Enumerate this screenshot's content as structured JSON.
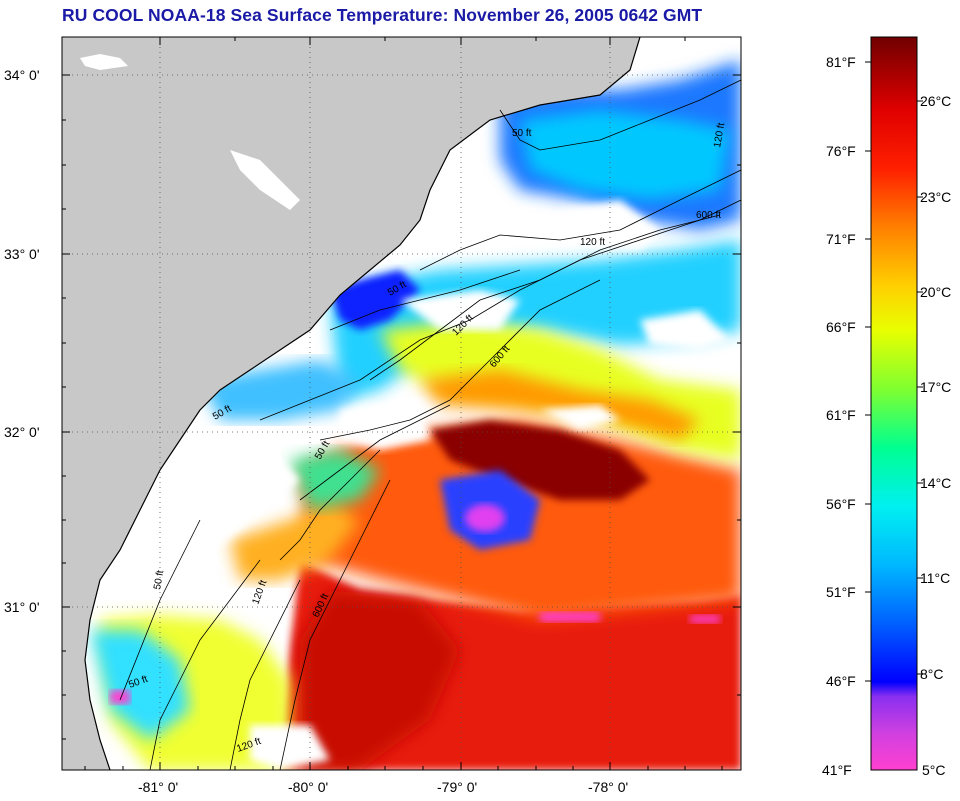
{
  "title": "RU COOL  NOAA-18  Sea Surface Temperature:  November 26, 2005 0642 GMT",
  "map": {
    "lat_labels": [
      "34° 0'",
      "33° 0'",
      "32° 0'",
      "31° 0'"
    ],
    "lon_labels": [
      "-81° 0'",
      "-80° 0'",
      "-79° 0'",
      "-78° 0'"
    ],
    "contour_labels": [
      "50 ft",
      "120 ft",
      "600 ft",
      "120 ft",
      "50 ft",
      "120 ft",
      "600 ft",
      "50 ft",
      "50 ft",
      "50 ft",
      "50 ft",
      "120 ft",
      "600 ft",
      "120 ft"
    ],
    "colors": {
      "land": "#c8c8c8",
      "cloud": "#ffffff",
      "frame": "#000000"
    }
  },
  "colorbar": {
    "fahrenheit_labels": [
      "81°F",
      "76°F",
      "71°F",
      "66°F",
      "61°F",
      "56°F",
      "51°F",
      "46°F",
      "41°F"
    ],
    "celsius_labels": [
      "26°C",
      "23°C",
      "20°C",
      "17°C",
      "14°C",
      "11°C",
      "8°C",
      "5°C"
    ],
    "colors": [
      "#ff40d0",
      "#9a3af0",
      "#0014ff",
      "#00a0ff",
      "#00f0ff",
      "#00ffa0",
      "#80ff30",
      "#ffff00",
      "#ffb000",
      "#ff6000",
      "#ff0000",
      "#d00000",
      "#700000"
    ]
  }
}
